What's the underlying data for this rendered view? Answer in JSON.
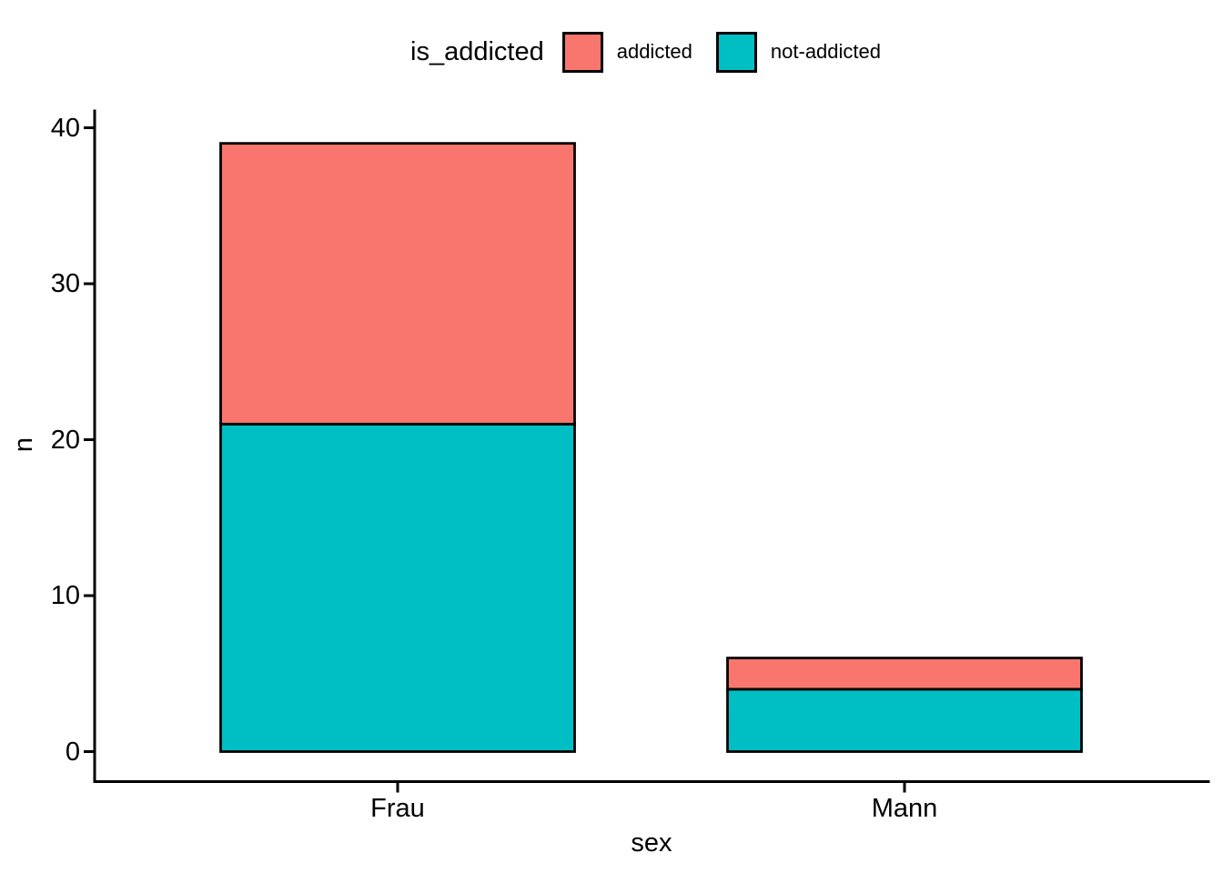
{
  "chart_data": {
    "type": "bar",
    "stacked": true,
    "title": "",
    "xlabel": "sex",
    "ylabel": "n",
    "categories": [
      "Frau",
      "Mann"
    ],
    "series": [
      {
        "name": "addicted",
        "color": "#F8766D",
        "values": [
          18,
          2
        ]
      },
      {
        "name": "not-addicted",
        "color": "#00BFC4",
        "values": [
          21,
          4
        ]
      }
    ],
    "totals": [
      39,
      6
    ],
    "stack_order_bottom_to_top": [
      "not-addicted",
      "addicted"
    ],
    "yticks": [
      0,
      10,
      20,
      30,
      40
    ],
    "ylim": [
      0,
      41
    ],
    "grid": false,
    "legend_position": "top"
  },
  "legend": {
    "title": "is_addicted",
    "items": [
      {
        "label": "addicted",
        "color": "#F8766D"
      },
      {
        "label": "not-addicted",
        "color": "#00BFC4"
      }
    ]
  },
  "colors": {
    "bar_outline": "#000000",
    "axis": "#000000",
    "text": "#000000",
    "background": "#FFFFFF"
  }
}
